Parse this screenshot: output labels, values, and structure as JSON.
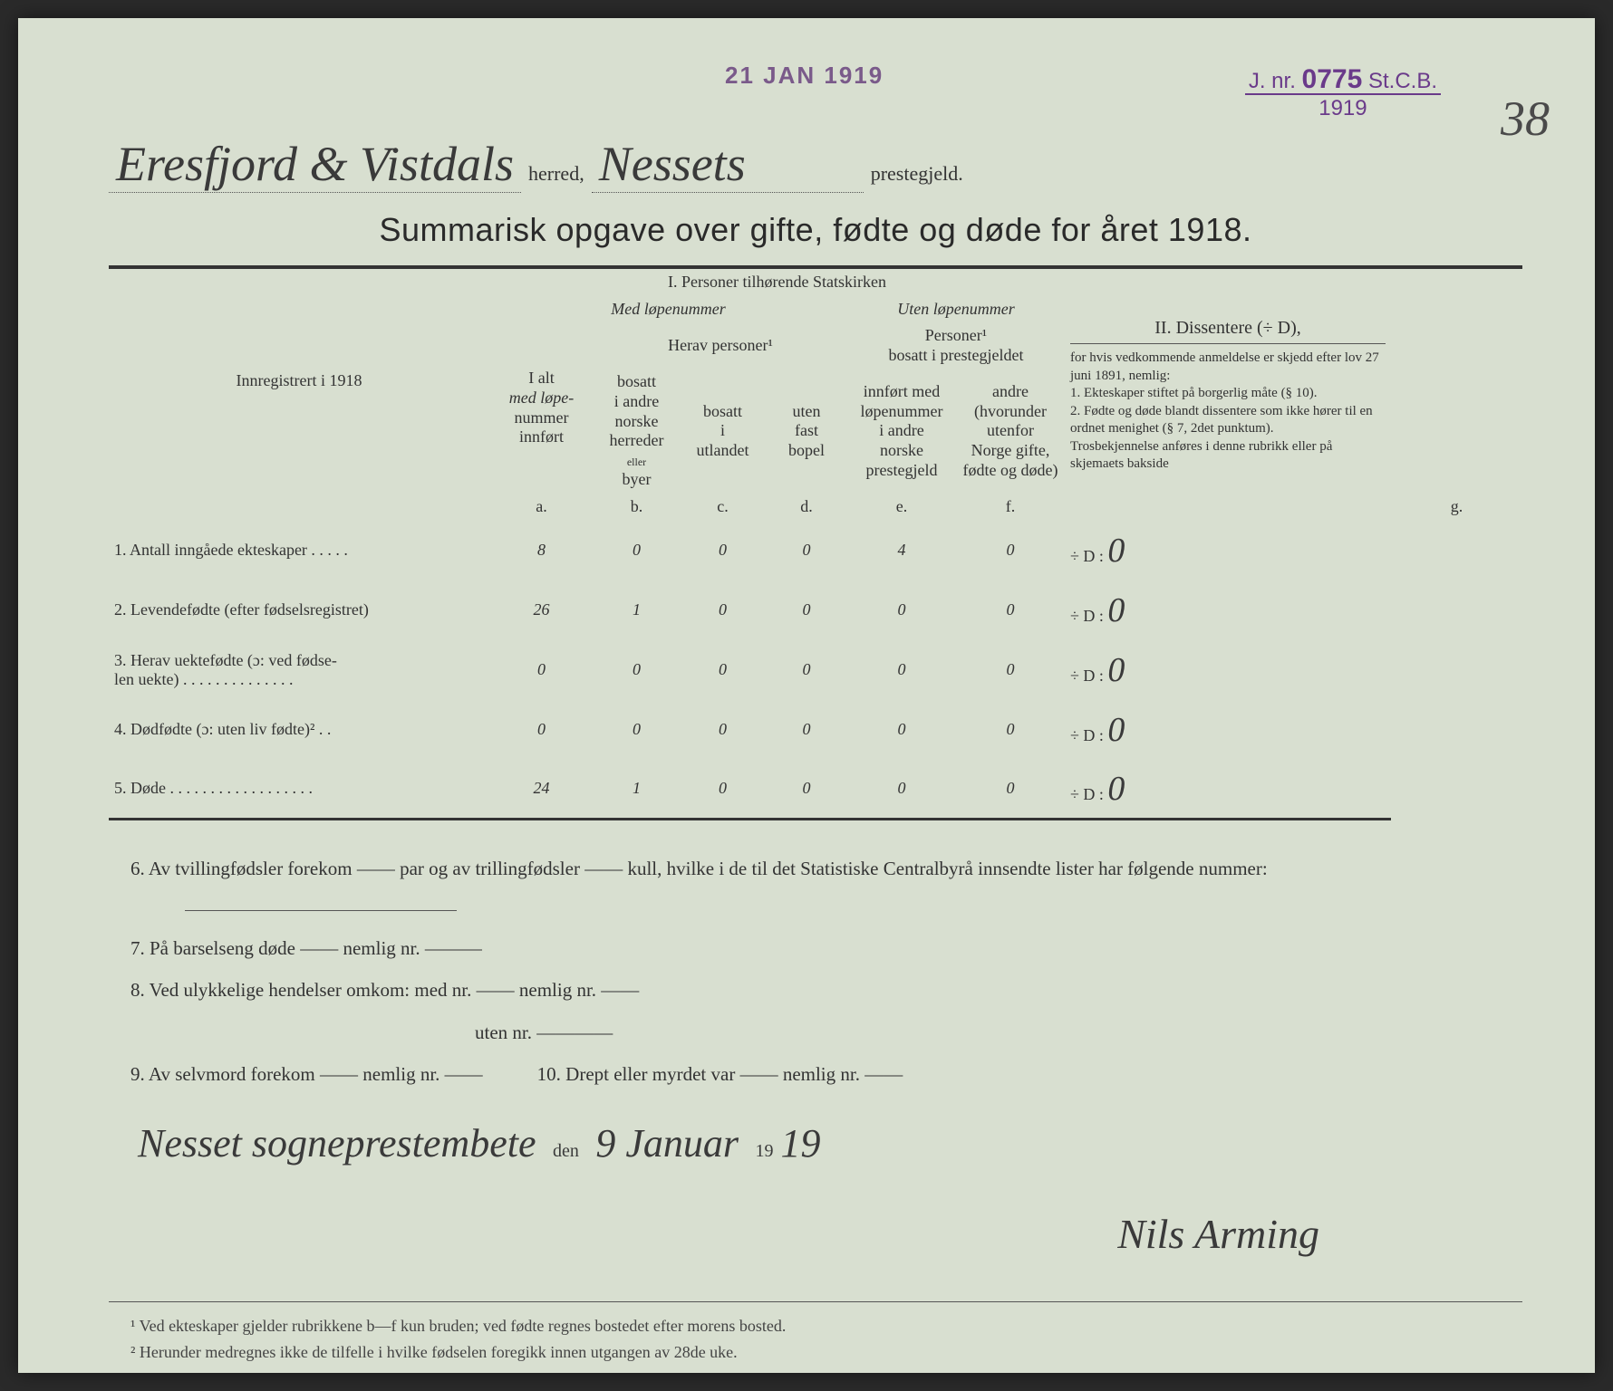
{
  "document": {
    "background_color": "#d8dfd0",
    "text_color": "#333333",
    "handwriting_color": "#3a3a3a",
    "stamp_color": "#6a3a8a"
  },
  "stamps": {
    "date": "21 JAN 1919",
    "jnr_prefix": "J. nr.",
    "jnr_number": "0775",
    "jnr_suffix": "St.C.B.",
    "jnr_year": "1919"
  },
  "page_number": "38",
  "header": {
    "herred_value": "Eresfjord & Vistdals",
    "herred_label": "herred,",
    "prestegjeld_value": "Nessets",
    "prestegjeld_label": "prestegjeld."
  },
  "title": "Summarisk opgave over gifte, fødte og døde for året 1918.",
  "table": {
    "section1_title": "I.  Personer tilhørende Statskirken",
    "section2_title": "II.  Dissentere (÷ D),",
    "med_lopenummer": "Med løpenummer",
    "uten_lopenummer": "Uten løpenummer",
    "herav_personer": "Herav personer¹",
    "personer_bosatt": "Personer¹\nbosatt i prestegjeldet",
    "registered_label": "Innregistrert i 1918",
    "col_a_lines": [
      "I alt",
      "med løpe-",
      "nummer",
      "innført"
    ],
    "col_b_lines": [
      "bosatt",
      "i andre",
      "norske",
      "herreder",
      "eller",
      "byer"
    ],
    "col_c_lines": [
      "bosatt",
      "i",
      "utlandet"
    ],
    "col_d_lines": [
      "uten",
      "fast",
      "bopel"
    ],
    "col_e_lines": [
      "innført med",
      "løpenummer",
      "i andre",
      "norske",
      "prestegjeld"
    ],
    "col_f_lines": [
      "andre",
      "(hvorunder",
      "utenfor",
      "Norge gifte,",
      "fødte og døde)"
    ],
    "col_letters": [
      "a.",
      "b.",
      "c.",
      "d.",
      "e.",
      "f.",
      "g."
    ],
    "notes_text": "for hvis vedkommende anmeldelse er skjedd efter lov 27 juni 1891, nemlig:\n1. Ekteskaper stiftet på borgerlig måte (§ 10).\n2. Fødte og døde blandt dissentere som ikke hører til en ordnet menighet (§ 7, 2det punktum).\nTrosbekjennelse anføres i denne rubrikk eller på skjemaets bakside",
    "rows": [
      {
        "num": "1.",
        "label": "Antall inngåede ekteskaper . . . . .",
        "a": "8",
        "b": "0",
        "c": "0",
        "d": "0",
        "e": "4",
        "f": "0",
        "g": "0"
      },
      {
        "num": "2.",
        "label": "Levendefødte (efter fødselsregistret)",
        "a": "26",
        "b": "1",
        "c": "0",
        "d": "0",
        "e": "0",
        "f": "0",
        "g": "0"
      },
      {
        "num": "3.",
        "label": "Herav uektefødte (ɔ: ved fødse-\nlen uekte) . . . . . . . . . . . . . .",
        "a": "0",
        "b": "0",
        "c": "0",
        "d": "0",
        "e": "0",
        "f": "0",
        "g": "0"
      },
      {
        "num": "4.",
        "label": "Dødfødte (ɔ: uten liv fødte)² . .",
        "a": "0",
        "b": "0",
        "c": "0",
        "d": "0",
        "e": "0",
        "f": "0",
        "g": "0"
      },
      {
        "num": "5.",
        "label": "Døde . . . . . . . . . . . . . . . . . .",
        "a": "24",
        "b": "1",
        "c": "0",
        "d": "0",
        "e": "0",
        "f": "0",
        "g": "0"
      }
    ],
    "diss_prefix": "÷ D :"
  },
  "lower": {
    "q6": "6.  Av tvillingfødsler forekom —— par og av trillingfødsler —— kull, hvilke i de til det Statistiske Centralbyrå innsendte lister har følgende nummer:",
    "q7": "7.  På barselseng døde —— nemlig nr. ———",
    "q8a": "8.  Ved ulykkelige hendelser omkom:  med nr. —— nemlig nr. ——",
    "q8b": "uten nr. ————",
    "q9": "9.  Av selvmord forekom —— nemlig nr. ——",
    "q10": "10.  Drept eller myrdet var —— nemlig nr. ——",
    "place": "Nesset sogneprestembete",
    "den": "den",
    "date_day": "9 Januar",
    "year_prefix": "19",
    "year_suffix": "19",
    "signature": "Nils Arming"
  },
  "footnotes": {
    "f1": "¹  Ved ekteskaper gjelder rubrikkene b—f kun bruden; ved fødte regnes bostedet efter morens bosted.",
    "f2": "²  Herunder medregnes ikke de tilfelle i hvilke fødselen foregikk innen utgangen av 28de uke."
  }
}
